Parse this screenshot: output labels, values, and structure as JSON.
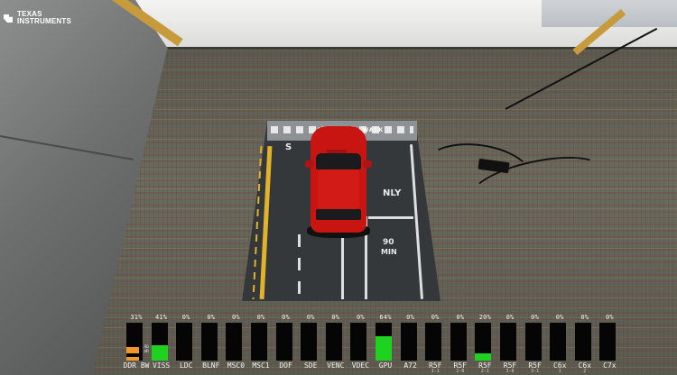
{
  "logo": {
    "line1": "TEXAS",
    "line2": "INSTRUMENTS"
  },
  "mat": {
    "crosswalk_text": "PED WALK",
    "stop_text": "S",
    "only_text": "NLY",
    "speed_number": "90",
    "speed_unit": "MIN"
  },
  "colors": {
    "bar_fill": "#1fd21f",
    "ddr_fill": "#f0962a",
    "bar_bg": "#050505",
    "car": "#c81512"
  },
  "perf": {
    "items": [
      {
        "label": "DDR BW",
        "pct": "31%",
        "value": 31,
        "color": "orange",
        "legend": [
          "RD",
          "WR"
        ],
        "sub": ""
      },
      {
        "label": "VISS",
        "pct": "41%",
        "value": 41,
        "color": "green",
        "sub": ""
      },
      {
        "label": "LDC",
        "pct": "0%",
        "value": 0,
        "color": "green",
        "sub": ""
      },
      {
        "label": "BLNF",
        "pct": "0%",
        "value": 0,
        "color": "green",
        "sub": ""
      },
      {
        "label": "MSC0",
        "pct": "0%",
        "value": 0,
        "color": "green",
        "sub": ""
      },
      {
        "label": "MSC1",
        "pct": "0%",
        "value": 0,
        "color": "green",
        "sub": ""
      },
      {
        "label": "DOF",
        "pct": "0%",
        "value": 0,
        "color": "green",
        "sub": ""
      },
      {
        "label": "SDE",
        "pct": "0%",
        "value": 0,
        "color": "green",
        "sub": ""
      },
      {
        "label": "VENC",
        "pct": "0%",
        "value": 0,
        "color": "green",
        "sub": ""
      },
      {
        "label": "VDEC",
        "pct": "0%",
        "value": 0,
        "color": "green",
        "sub": ""
      },
      {
        "label": "GPU",
        "pct": "64%",
        "value": 64,
        "color": "green",
        "sub": ""
      },
      {
        "label": "A72",
        "pct": "0%",
        "value": 0,
        "color": "green",
        "sub": ""
      },
      {
        "label": "R5F",
        "pct": "0%",
        "value": 0,
        "color": "green",
        "sub": "1-1"
      },
      {
        "label": "R5F",
        "pct": "0%",
        "value": 0,
        "color": "green",
        "sub": "2-0"
      },
      {
        "label": "R5F",
        "pct": "20%",
        "value": 20,
        "color": "green",
        "sub": "2-1"
      },
      {
        "label": "R5F",
        "pct": "0%",
        "value": 0,
        "color": "green",
        "sub": "3-0"
      },
      {
        "label": "R5F",
        "pct": "0%",
        "value": 0,
        "color": "green",
        "sub": "3-1"
      },
      {
        "label": "C6x",
        "pct": "0%",
        "value": 0,
        "color": "green",
        "sub": "1"
      },
      {
        "label": "C6x",
        "pct": "0%",
        "value": 0,
        "color": "green",
        "sub": "2"
      },
      {
        "label": "C7x",
        "pct": "0%",
        "value": 0,
        "color": "green",
        "sub": ""
      }
    ]
  }
}
